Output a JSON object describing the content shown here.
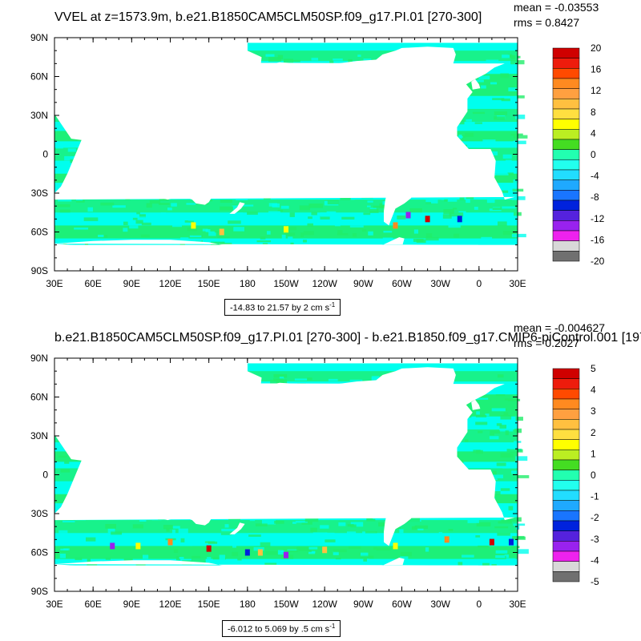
{
  "panels": [
    {
      "title": "VVEL at z=1573.9m, b.e21.B1850CAM5CLM50SP.f09_g17.PI.01 [270-300]",
      "mean_text": "mean = -0.03553",
      "rms_text": "rms = 0.8427",
      "range_text": "-14.83 to 21.57 by 2 cm s",
      "range_exp": "-1",
      "colorbar_labels": [
        "20",
        "16",
        "12",
        "8",
        "4",
        "0",
        "-4",
        "-8",
        "-12",
        "-16",
        "-20"
      ],
      "hotspots": [
        {
          "lon": 138,
          "lat": -55
        },
        {
          "lon": -65,
          "lat": -55
        },
        {
          "lon": -40,
          "lat": -50
        },
        {
          "lon": -15,
          "lat": -50
        },
        {
          "lon": -55,
          "lat": -47
        },
        {
          "lon": 160,
          "lat": -60
        },
        {
          "lon": -150,
          "lat": -58
        }
      ]
    },
    {
      "title": "b.e21.B1850CAM5CLM50SP.f09_g17.PI.01 [270-300] - b.e21.B1850.f09_g17.CMIP6-piControl.001 [197",
      "mean_text": "mean = -0.004627",
      "rms_text": "rms = 0.2027",
      "range_text": "-6.012 to 5.069 by .5 cm s",
      "range_exp": "-1",
      "colorbar_labels": [
        "5",
        "4",
        "3",
        "2",
        "1",
        "0",
        "-1",
        "-2",
        "-3",
        "-4",
        "-5"
      ],
      "hotspots": [
        {
          "lon": 95,
          "lat": -55
        },
        {
          "lon": 120,
          "lat": -52
        },
        {
          "lon": 150,
          "lat": -57
        },
        {
          "lon": 180,
          "lat": -60
        },
        {
          "lon": -150,
          "lat": -62
        },
        {
          "lon": -120,
          "lat": -58
        },
        {
          "lon": -65,
          "lat": -55
        },
        {
          "lon": -25,
          "lat": -50
        },
        {
          "lon": 10,
          "lat": -52
        },
        {
          "lon": 25,
          "lat": -52
        },
        {
          "lon": 75,
          "lat": -55
        },
        {
          "lon": -170,
          "lat": -60
        }
      ]
    }
  ],
  "lon_ticks": [
    "30E",
    "60E",
    "90E",
    "120E",
    "150E",
    "180",
    "150W",
    "120W",
    "90W",
    "60W",
    "30W",
    "0",
    "30E"
  ],
  "lat_ticks": [
    "90N",
    "60N",
    "30N",
    "0",
    "30S",
    "60S",
    "90S"
  ],
  "colors": {
    "ocean_cyan": "#00ffee",
    "ocean_green": "#20ee6a",
    "land": "#ffffff",
    "colorbar": [
      "#d00000",
      "#ee1c0c",
      "#ff4a00",
      "#ff8a20",
      "#ffa040",
      "#ffc040",
      "#ffdf40",
      "#ffff00",
      "#bbee22",
      "#44dd22",
      "#21ee66",
      "#22ffb0",
      "#22ffee",
      "#22ddff",
      "#1fa9ff",
      "#1975ff",
      "#0022dd",
      "#5522dd",
      "#9922ee",
      "#ee22ee",
      "#d8d8d8",
      "#707070"
    ]
  }
}
